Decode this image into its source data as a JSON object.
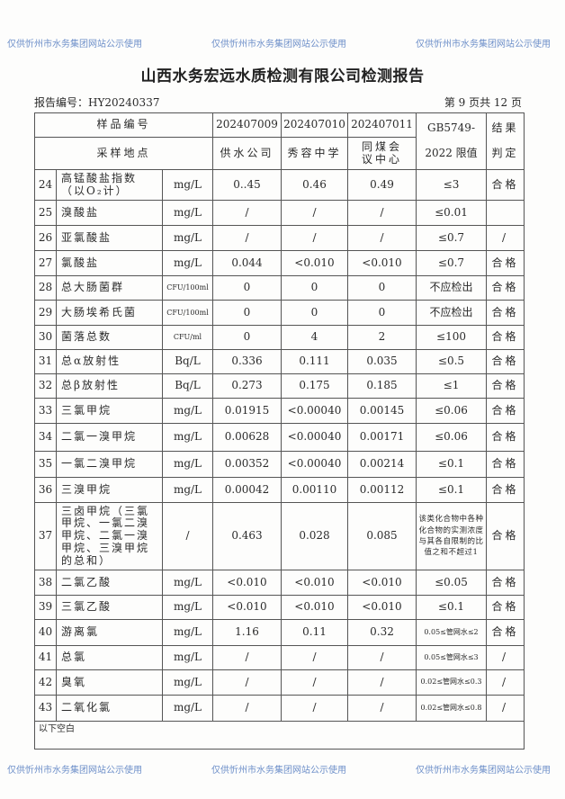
{
  "title": "山西水务宏远水质检测有限公司检测报告",
  "report_no": "报告编号：HY20240337",
  "page_info": "第 9 页共 12 页",
  "header": {
    "sample_no_label": "样品编号",
    "sample_ids": [
      "202407009",
      "202407010",
      "202407011"
    ],
    "location_label": "采样地点",
    "locations": [
      "供水公司",
      "秀容中学",
      "同煤会议中心"
    ],
    "limit_label_1": "GB5749-",
    "limit_label_2": "2022 限值",
    "result_label_1": "结果",
    "result_label_2": "判定"
  },
  "rows": [
    {
      "no": "24",
      "item": "高锰酸盐指数（以O₂计）",
      "unit": "mg/L",
      "v1": "0..45",
      "v2": "0.46",
      "v3": "0.49",
      "limit": "≤3",
      "result": "合格"
    },
    {
      "no": "25",
      "item": "溴酸盐",
      "unit": "mg/L",
      "v1": "/",
      "v2": "/",
      "v3": "/",
      "limit": "≤0.01",
      "result": ""
    },
    {
      "no": "26",
      "item": "亚氯酸盐",
      "unit": "mg/L",
      "v1": "/",
      "v2": "/",
      "v3": "/",
      "limit": "≤0.7",
      "result": "/"
    },
    {
      "no": "27",
      "item": "氯酸盐",
      "unit": "mg/L",
      "v1": "0.044",
      "v2": "<0.010",
      "v3": "<0.010",
      "limit": "≤0.7",
      "result": "合格"
    },
    {
      "no": "28",
      "item": "总大肠菌群",
      "unit": "CFU/100ml",
      "v1": "0",
      "v2": "0",
      "v3": "0",
      "limit": "不应检出",
      "result": "合格"
    },
    {
      "no": "29",
      "item": "大肠埃希氏菌",
      "unit": "CFU/100ml",
      "v1": "0",
      "v2": "0",
      "v3": "0",
      "limit": "不应检出",
      "result": "合格"
    },
    {
      "no": "30",
      "item": "菌落总数",
      "unit": "CFU/ml",
      "v1": "0",
      "v2": "4",
      "v3": "2",
      "limit": "≤100",
      "result": "合格"
    },
    {
      "no": "31",
      "item": "总α放射性",
      "unit": "Bq/L",
      "v1": "0.336",
      "v2": "0.111",
      "v3": "0.035",
      "limit": "≤0.5",
      "result": "合格"
    },
    {
      "no": "32",
      "item": "总β放射性",
      "unit": "Bq/L",
      "v1": "0.273",
      "v2": "0.175",
      "v3": "0.185",
      "limit": "≤1",
      "result": "合格"
    },
    {
      "no": "33",
      "item": "三氯甲烷",
      "unit": "mg/L",
      "v1": "0.01915",
      "v2": "<0.00040",
      "v3": "0.00145",
      "limit": "≤0.06",
      "result": "合格"
    },
    {
      "no": "34",
      "item": "二氯一溴甲烷",
      "unit": "mg/L",
      "v1": "0.00628",
      "v2": "<0.00040",
      "v3": "0.00171",
      "limit": "≤0.06",
      "result": "合格"
    },
    {
      "no": "35",
      "item": "一氯二溴甲烷",
      "unit": "mg/L",
      "v1": "0.00352",
      "v2": "<0.00040",
      "v3": "0.00214",
      "limit": "≤0.1",
      "result": "合格"
    },
    {
      "no": "36",
      "item": "三溴甲烷",
      "unit": "mg/L",
      "v1": "0.00042",
      "v2": "0.00110",
      "v3": "0.00112",
      "limit": "≤0.1",
      "result": "合格"
    },
    {
      "no": "37",
      "item": "三卤甲烷（三氯甲烷、一氯二溴甲烷、二氯一溴甲烷、三溴甲烷的总和）",
      "unit": "/",
      "v1": "0.463",
      "v2": "0.028",
      "v3": "0.085",
      "limit": "该类化合物中各种化合物的实测浓度与其各自限制的比值之和不超过1",
      "result": "合格"
    },
    {
      "no": "38",
      "item": "二氯乙酸",
      "unit": "mg/L",
      "v1": "<0.010",
      "v2": "<0.010",
      "v3": "<0.010",
      "limit": "≤0.05",
      "result": "合格"
    },
    {
      "no": "39",
      "item": "三氯乙酸",
      "unit": "mg/L",
      "v1": "<0.010",
      "v2": "<0.010",
      "v3": "<0.010",
      "limit": "≤0.1",
      "result": "合格"
    },
    {
      "no": "40",
      "item": "游离氯",
      "unit": "mg/L",
      "v1": "1.16",
      "v2": "0.11",
      "v3": "0.32",
      "limit": "0.05≤管网水≤2",
      "result": "合格"
    },
    {
      "no": "41",
      "item": "总氯",
      "unit": "mg/L",
      "v1": "/",
      "v2": "/",
      "v3": "/",
      "limit": "0.05≤管网水≤3",
      "result": "/"
    },
    {
      "no": "42",
      "item": "臭氧",
      "unit": "mg/L",
      "v1": "/",
      "v2": "/",
      "v3": "/",
      "limit": "0.02≤管网水≤0.3",
      "result": "/"
    },
    {
      "no": "43",
      "item": "二氧化氯",
      "unit": "mg/L",
      "v1": "/",
      "v2": "/",
      "v3": "/",
      "limit": "0.02≤管网水≤0.8",
      "result": "/"
    }
  ],
  "footer_note": "以下空白",
  "watermark": "仅供忻州市水务集团网站公示使用",
  "colors": {
    "watermark": "#6d8fc9",
    "text": "#2a2a2a"
  }
}
